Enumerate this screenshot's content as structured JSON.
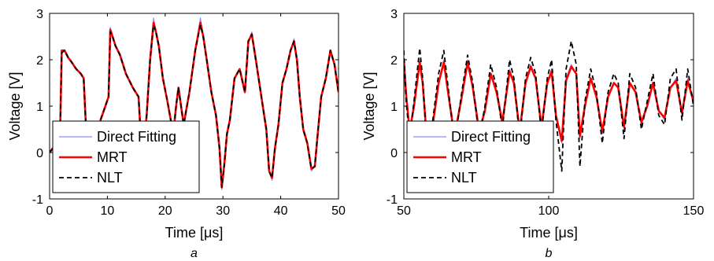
{
  "colors": {
    "direct_fitting": "#8c8cff",
    "mrt": "#ff0000",
    "nlt": "#000000",
    "axis": "#000000",
    "background": "#ffffff"
  },
  "chart_data": [
    {
      "type": "line",
      "panel_label": "a",
      "xlabel": "Time [μs]",
      "ylabel": "Voltage [V]",
      "xlim": [
        0,
        50
      ],
      "ylim": [
        -1,
        3
      ],
      "xticks": [
        0,
        10,
        20,
        30,
        40,
        50
      ],
      "yticks": [
        -1,
        0,
        1,
        2,
        3
      ],
      "legend": {
        "position": "bottom-left",
        "entries": [
          "Direct Fitting",
          "MRT",
          "NLT"
        ]
      },
      "series": [
        {
          "name": "Direct Fitting",
          "x": [
            0,
            1.8,
            2.1,
            2.6,
            3.2,
            3.8,
            4.6,
            5.4,
            5.9,
            6.2,
            6.6,
            10.2,
            10.5,
            10.9,
            11.4,
            12.2,
            13.2,
            14.4,
            15.4,
            16.0,
            16.4,
            16.8,
            17.4,
            18.0,
            18.4,
            18.9,
            19.6,
            20.4,
            21.4,
            21.9,
            22.3,
            23.2,
            24.2,
            25.2,
            26.1,
            26.6,
            27.2,
            28.0,
            28.8,
            29.4,
            29.8,
            30.2,
            30.7,
            31.2,
            32.0,
            32.9,
            33.8,
            34.4,
            35.0,
            35.7,
            36.3,
            36.9,
            37.5,
            38.0,
            38.5,
            39.0,
            39.6,
            40.3,
            41.0,
            41.7,
            42.3,
            42.8,
            43.3,
            43.9,
            44.6,
            45.3,
            45.9,
            46.4,
            47.0,
            47.8,
            48.6,
            49.3,
            50.0
          ],
          "y": [
            0.0,
            0.3,
            2.2,
            2.2,
            2.05,
            1.95,
            1.8,
            1.7,
            1.6,
            0.8,
            -0.1,
            1.2,
            2.7,
            2.5,
            2.3,
            2.1,
            1.7,
            1.4,
            1.2,
            -0.1,
            0.3,
            0.8,
            2.0,
            2.9,
            2.6,
            2.3,
            1.6,
            1.1,
            0.4,
            1.0,
            1.4,
            0.6,
            1.3,
            2.2,
            2.9,
            2.5,
            2.0,
            1.3,
            0.8,
            0.1,
            -0.8,
            -0.3,
            0.4,
            0.7,
            1.6,
            1.8,
            1.3,
            2.4,
            2.6,
            2.0,
            1.5,
            1.0,
            0.5,
            -0.4,
            -0.6,
            0.1,
            0.6,
            1.5,
            1.8,
            2.2,
            2.45,
            2.0,
            1.2,
            0.5,
            0.2,
            -0.4,
            -0.3,
            0.4,
            1.2,
            1.6,
            2.2,
            1.9,
            1.3
          ]
        },
        {
          "name": "MRT",
          "x": [
            0,
            1.8,
            2.1,
            2.6,
            3.2,
            3.8,
            4.6,
            5.4,
            5.9,
            6.2,
            6.6,
            10.2,
            10.5,
            10.9,
            11.4,
            12.2,
            13.2,
            14.4,
            15.4,
            16.0,
            16.4,
            16.8,
            17.4,
            18.0,
            18.4,
            18.9,
            19.6,
            20.4,
            21.4,
            21.9,
            22.3,
            23.2,
            24.2,
            25.2,
            26.1,
            26.6,
            27.2,
            28.0,
            28.8,
            29.4,
            29.8,
            30.2,
            30.7,
            31.2,
            32.0,
            32.9,
            33.8,
            34.4,
            35.0,
            35.7,
            36.3,
            36.9,
            37.5,
            38.0,
            38.5,
            39.0,
            39.6,
            40.3,
            41.0,
            41.7,
            42.3,
            42.8,
            43.3,
            43.9,
            44.6,
            45.3,
            45.9,
            46.4,
            47.0,
            47.8,
            48.6,
            49.3,
            50.0
          ],
          "y": [
            0.0,
            0.3,
            2.2,
            2.2,
            2.05,
            1.95,
            1.8,
            1.7,
            1.6,
            0.8,
            -0.1,
            1.2,
            2.65,
            2.5,
            2.3,
            2.1,
            1.7,
            1.4,
            1.2,
            -0.1,
            0.3,
            0.8,
            2.0,
            2.8,
            2.6,
            2.3,
            1.6,
            1.1,
            0.4,
            1.0,
            1.4,
            0.6,
            1.3,
            2.2,
            2.8,
            2.5,
            2.0,
            1.3,
            0.8,
            0.1,
            -0.75,
            -0.3,
            0.4,
            0.7,
            1.6,
            1.8,
            1.3,
            2.4,
            2.55,
            2.0,
            1.5,
            1.0,
            0.5,
            -0.4,
            -0.55,
            0.1,
            0.6,
            1.5,
            1.8,
            2.2,
            2.4,
            2.0,
            1.2,
            0.5,
            0.2,
            -0.35,
            -0.3,
            0.4,
            1.2,
            1.6,
            2.2,
            1.9,
            1.3
          ]
        },
        {
          "name": "NLT",
          "x": [
            0,
            1.8,
            2.1,
            2.6,
            3.2,
            3.8,
            4.6,
            5.4,
            5.9,
            6.2,
            6.6,
            10.2,
            10.5,
            10.9,
            11.4,
            12.2,
            13.2,
            14.4,
            15.4,
            16.0,
            16.4,
            16.8,
            17.4,
            18.0,
            18.4,
            18.9,
            19.6,
            20.4,
            21.4,
            21.9,
            22.3,
            23.2,
            24.2,
            25.2,
            26.1,
            26.6,
            27.2,
            28.0,
            28.8,
            29.4,
            29.8,
            30.2,
            30.7,
            31.2,
            32.0,
            32.9,
            33.8,
            34.4,
            35.0,
            35.7,
            36.3,
            36.9,
            37.5,
            38.0,
            38.5,
            39.0,
            39.6,
            40.3,
            41.0,
            41.7,
            42.3,
            42.8,
            43.3,
            43.9,
            44.6,
            45.3,
            45.9,
            46.4,
            47.0,
            47.8,
            48.6,
            49.3,
            50.0
          ],
          "y": [
            0.0,
            0.3,
            2.15,
            2.2,
            2.05,
            1.95,
            1.8,
            1.7,
            1.6,
            0.8,
            -0.1,
            1.2,
            2.6,
            2.5,
            2.3,
            2.1,
            1.7,
            1.4,
            1.2,
            -0.1,
            0.3,
            0.8,
            2.0,
            2.75,
            2.6,
            2.3,
            1.6,
            1.1,
            0.4,
            1.0,
            1.4,
            0.6,
            1.3,
            2.2,
            2.75,
            2.5,
            2.0,
            1.3,
            0.8,
            0.1,
            -0.75,
            -0.3,
            0.4,
            0.7,
            1.6,
            1.8,
            1.3,
            2.4,
            2.55,
            2.0,
            1.5,
            1.0,
            0.5,
            -0.4,
            -0.55,
            0.1,
            0.6,
            1.5,
            1.8,
            2.2,
            2.4,
            2.0,
            1.2,
            0.5,
            0.2,
            -0.35,
            -0.3,
            0.4,
            1.2,
            1.6,
            2.2,
            1.9,
            1.3
          ]
        }
      ]
    },
    {
      "type": "line",
      "panel_label": "b",
      "xlabel": "Time [μs]",
      "ylabel": "Voltage [V]",
      "xlim": [
        50,
        150
      ],
      "ylim": [
        -1,
        3
      ],
      "xticks": [
        50,
        100,
        150
      ],
      "yticks": [
        -1,
        0,
        1,
        2,
        3
      ],
      "legend": {
        "position": "bottom-left",
        "entries": [
          "Direct Fitting",
          "MRT",
          "NLT"
        ]
      },
      "series": [
        {
          "name": "Direct Fitting",
          "x": [
            50,
            50.8,
            52.0,
            53.5,
            55.5,
            56.5,
            58.0,
            60.0,
            62.0,
            63.8,
            65.5,
            67.5,
            70.0,
            72.0,
            73.8,
            76.0,
            78.0,
            80.0,
            82.0,
            84.0,
            86.5,
            88.0,
            90.0,
            92.0,
            93.8,
            95.5,
            97.5,
            99.5,
            101.0,
            102.5,
            104.5,
            106.0,
            107.8,
            109.5,
            110.8,
            112.5,
            114.5,
            116.5,
            118.5,
            120.5,
            122.5,
            124.0,
            126.0,
            128.0,
            130.0,
            132.0,
            134.0,
            136.0,
            138.0,
            140.0,
            142.0,
            144.0,
            146.0,
            148.0,
            150.0
          ],
          "y": [
            2.0,
            1.2,
            0.4,
            1.0,
            2.0,
            1.5,
            0.2,
            0.6,
            1.5,
            2.0,
            1.2,
            0.3,
            1.2,
            2.0,
            1.4,
            0.4,
            0.9,
            1.7,
            1.3,
            0.6,
            1.8,
            1.5,
            0.4,
            1.5,
            1.9,
            1.6,
            0.5,
            1.5,
            1.8,
            0.8,
            0.2,
            1.6,
            1.9,
            1.7,
            0.3,
            1.0,
            1.6,
            1.2,
            0.4,
            1.2,
            1.5,
            1.4,
            0.5,
            1.5,
            1.3,
            0.6,
            1.0,
            1.5,
            0.9,
            0.7,
            1.4,
            1.6,
            0.8,
            1.6,
            1.1
          ]
        },
        {
          "name": "MRT",
          "x": [
            50,
            50.8,
            52.0,
            53.5,
            55.5,
            56.5,
            58.0,
            60.0,
            62.0,
            63.8,
            65.5,
            67.5,
            70.0,
            72.0,
            73.8,
            76.0,
            78.0,
            80.0,
            82.0,
            84.0,
            86.5,
            88.0,
            90.0,
            92.0,
            93.8,
            95.5,
            97.5,
            99.5,
            101.0,
            102.5,
            104.5,
            106.0,
            107.8,
            109.5,
            110.8,
            112.5,
            114.5,
            116.5,
            118.5,
            120.5,
            122.5,
            124.0,
            126.0,
            128.0,
            130.0,
            132.0,
            134.0,
            136.0,
            138.0,
            140.0,
            142.0,
            144.0,
            146.0,
            148.0,
            150.0
          ],
          "y": [
            2.0,
            1.25,
            0.45,
            1.0,
            1.95,
            1.5,
            0.25,
            0.6,
            1.5,
            1.95,
            1.2,
            0.35,
            1.2,
            1.95,
            1.4,
            0.45,
            0.9,
            1.7,
            1.3,
            0.65,
            1.75,
            1.5,
            0.45,
            1.5,
            1.85,
            1.6,
            0.55,
            1.5,
            1.75,
            0.8,
            0.25,
            1.55,
            1.85,
            1.7,
            0.35,
            1.0,
            1.6,
            1.2,
            0.45,
            1.2,
            1.5,
            1.4,
            0.55,
            1.5,
            1.3,
            0.65,
            1.0,
            1.5,
            0.9,
            0.75,
            1.4,
            1.55,
            0.85,
            1.55,
            1.1
          ]
        },
        {
          "name": "NLT",
          "x": [
            50,
            50.8,
            52.0,
            53.5,
            55.5,
            56.5,
            58.0,
            60.0,
            62.0,
            63.8,
            65.5,
            67.5,
            70.0,
            72.0,
            73.8,
            76.0,
            78.0,
            80.0,
            82.0,
            84.0,
            86.5,
            88.0,
            90.0,
            92.0,
            93.8,
            95.5,
            97.5,
            99.5,
            101.0,
            102.5,
            104.5,
            106.0,
            107.8,
            109.5,
            110.8,
            112.5,
            114.5,
            116.5,
            118.5,
            120.5,
            122.5,
            124.0,
            126.0,
            128.0,
            130.0,
            132.0,
            134.0,
            136.0,
            138.0,
            140.0,
            142.0,
            144.0,
            146.0,
            148.0,
            150.0
          ],
          "y": [
            2.2,
            1.1,
            0.3,
            1.1,
            2.25,
            1.6,
            0.1,
            0.7,
            1.7,
            2.2,
            1.3,
            0.2,
            1.3,
            2.1,
            1.5,
            0.3,
            1.0,
            1.9,
            1.4,
            0.5,
            2.0,
            1.6,
            0.3,
            1.6,
            2.05,
            1.7,
            0.4,
            1.6,
            2.0,
            0.7,
            -0.4,
            1.8,
            2.4,
            1.9,
            -0.3,
            1.1,
            1.8,
            1.3,
            0.2,
            1.3,
            1.7,
            1.5,
            0.3,
            1.7,
            1.4,
            0.5,
            1.1,
            1.7,
            0.8,
            0.6,
            1.6,
            1.8,
            0.7,
            1.8,
            1.0
          ]
        }
      ]
    }
  ]
}
